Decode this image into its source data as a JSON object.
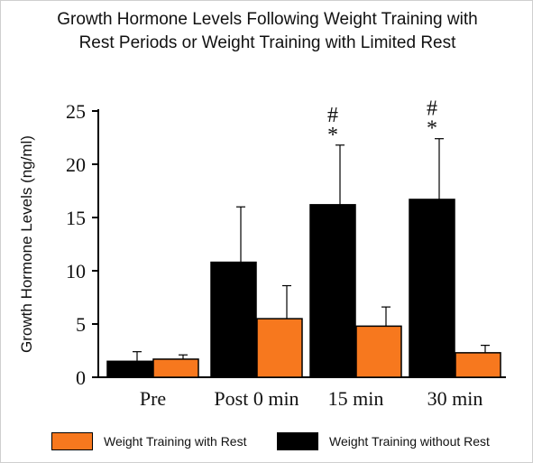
{
  "chart_data": {
    "type": "bar",
    "title_lines": [
      "Growth Hormone Levels Following Weight Training with",
      "Rest Periods or Weight Training with Limited Rest"
    ],
    "ylabel": "Growth Hormone Levels (ng/ml)",
    "xlabel": "",
    "ylim": [
      0,
      25
    ],
    "yticks": [
      0,
      5,
      10,
      15,
      20,
      25
    ],
    "categories": [
      "Pre",
      "Post 0 min",
      "15 min",
      "30 min"
    ],
    "series": [
      {
        "name": "Weight Training without Rest",
        "color": "#000000",
        "values": [
          1.5,
          10.8,
          16.2,
          16.7
        ],
        "error": [
          0.9,
          5.2,
          5.6,
          5.7
        ]
      },
      {
        "name": "Weight Training with Rest",
        "color": "#f7781e",
        "values": [
          1.7,
          5.5,
          4.8,
          2.3
        ],
        "error": [
          0.4,
          3.1,
          1.8,
          0.7
        ]
      }
    ],
    "annotations": [
      {
        "category_index": 2,
        "series_index": 0,
        "marks": [
          "#",
          "*"
        ]
      },
      {
        "category_index": 3,
        "series_index": 0,
        "marks": [
          "#",
          "*"
        ]
      }
    ],
    "legend": {
      "placement": "bottom",
      "order": [
        "Weight Training with Rest",
        "Weight Training without Rest"
      ]
    },
    "grid": false
  }
}
